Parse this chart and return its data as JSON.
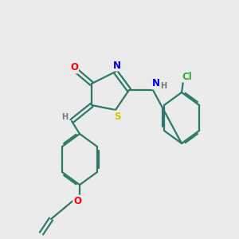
{
  "bg_color": "#ebebeb",
  "bond_color": "#2d7a6a",
  "bond_width": 1.6,
  "atom_colors": {
    "O": "#ff0000",
    "N": "#0000dd",
    "S": "#cccc00",
    "H": "#777777",
    "Cl": "#33aa33"
  },
  "figsize": [
    3.0,
    3.0
  ],
  "dpi": 100
}
